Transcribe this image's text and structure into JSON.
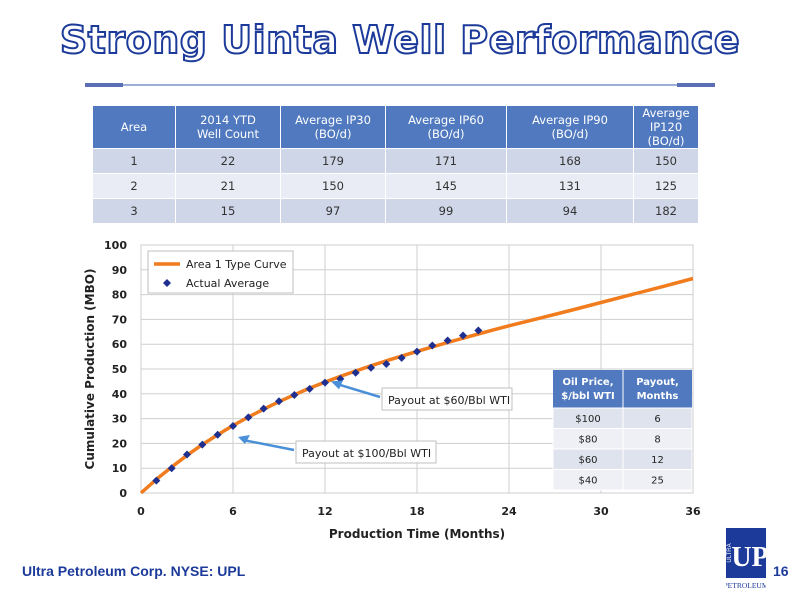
{
  "slide": {
    "title": "Strong Uinta Well Performance",
    "footer": "Ultra Petroleum Corp. NYSE: UPL",
    "page_number": "16",
    "logo": {
      "mark": "UP",
      "side": "ULTRA",
      "bottom": "PETROLEUM"
    }
  },
  "area_table": {
    "headers": [
      [
        "Area"
      ],
      [
        "2014 YTD",
        "Well Count"
      ],
      [
        "Average IP30",
        "(BO/d)"
      ],
      [
        "Average IP60",
        "(BO/d)"
      ],
      [
        "Average IP90",
        "(BO/d)"
      ],
      [
        "Average IP120",
        "(BO/d)"
      ]
    ],
    "rows": [
      [
        "1",
        "22",
        "179",
        "171",
        "168",
        "150"
      ],
      [
        "2",
        "21",
        "150",
        "145",
        "131",
        "125"
      ],
      [
        "3",
        "15",
        "97",
        "99",
        "94",
        "182"
      ]
    ]
  },
  "chart_data": {
    "type": "line",
    "xlabel": "Production Time (Months)",
    "ylabel": "Cumulative Production (MBO)",
    "xlim": [
      0,
      36
    ],
    "ylim": [
      0,
      100
    ],
    "xticks": [
      0,
      6,
      12,
      18,
      24,
      30,
      36
    ],
    "yticks": [
      0,
      10,
      20,
      30,
      40,
      50,
      60,
      70,
      80,
      90,
      100
    ],
    "grid": true,
    "legend_position": "top-left",
    "series": [
      {
        "name": "Area 1 Type Curve",
        "kind": "line",
        "color": "#f07c1e",
        "x": [
          0,
          1,
          2,
          3,
          4,
          5,
          6,
          7,
          8,
          9,
          10,
          11,
          12,
          13,
          14,
          15,
          16,
          17,
          18,
          19,
          20,
          21,
          22,
          23,
          24,
          26,
          28,
          30,
          32,
          34,
          36
        ],
        "y": [
          0,
          5.5,
          10.5,
          15.2,
          19.5,
          23.5,
          27.2,
          30.6,
          33.8,
          36.8,
          39.6,
          42.3,
          44.7,
          47.0,
          49.2,
          51.3,
          53.3,
          55.2,
          57.1,
          58.9,
          60.7,
          62.4,
          64.1,
          65.8,
          67.4,
          70.5,
          73.6,
          76.8,
          80.0,
          83.2,
          86.5
        ]
      },
      {
        "name": "Actual Average",
        "kind": "scatter",
        "color": "#1f2f8f",
        "x": [
          1,
          2,
          3,
          4,
          5,
          6,
          7,
          8,
          9,
          10,
          11,
          12,
          13,
          14,
          15,
          16,
          17,
          18,
          19,
          20,
          21,
          22
        ],
        "y": [
          5,
          10,
          15.5,
          19.5,
          23.5,
          27,
          30.5,
          34,
          37,
          39.5,
          42,
          44.5,
          46,
          48.5,
          50.5,
          52,
          54.5,
          57,
          59.5,
          61.5,
          63.5,
          65.5
        ]
      }
    ],
    "annotations": [
      {
        "text": "Payout at $60/Bbl WTI",
        "x": 12,
        "y": 45
      },
      {
        "text": "Payout at $100/Bbl WTI",
        "x": 6,
        "y": 25
      }
    ],
    "payout_table": {
      "headers": [
        [
          "Oil Price,",
          "$/bbl WTI"
        ],
        [
          "Payout,",
          "Months"
        ]
      ],
      "rows": [
        [
          "$100",
          "6"
        ],
        [
          "$80",
          "8"
        ],
        [
          "$60",
          "12"
        ],
        [
          "$40",
          "25"
        ]
      ]
    }
  }
}
